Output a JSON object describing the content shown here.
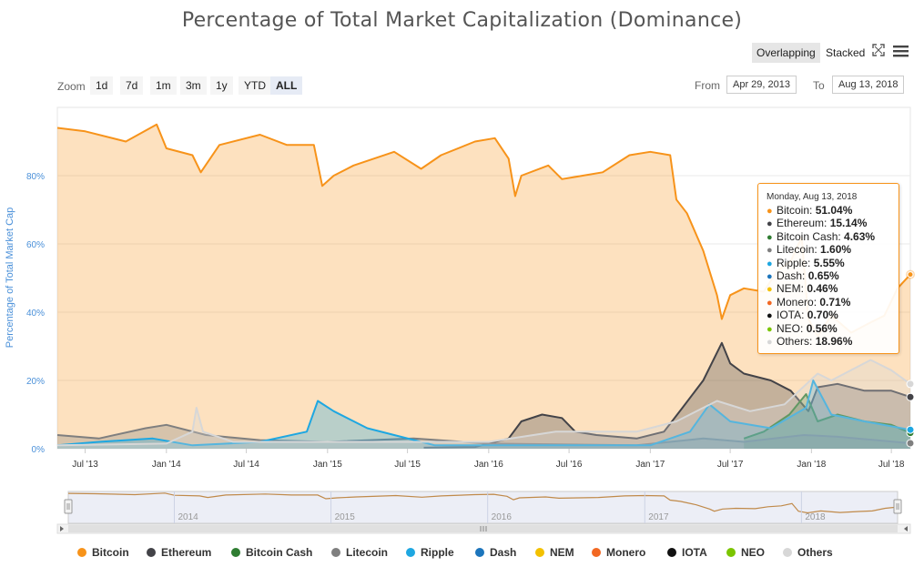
{
  "title": "Percentage of Total Market Capitalization (Dominance)",
  "toggle": {
    "overlapping": "Overlapping",
    "stacked": "Stacked"
  },
  "icons": {
    "fullscreen": "fullscreen-icon",
    "menu": "hamburger-menu-icon"
  },
  "zoom": {
    "label": "Zoom",
    "buttons": [
      "1d",
      "7d",
      "1m",
      "3m",
      "1y",
      "YTD",
      "ALL"
    ],
    "active": "ALL"
  },
  "range": {
    "from_label": "From",
    "from_value": "Apr 29, 2013",
    "to_label": "To",
    "to_value": "Aug 13, 2018"
  },
  "tooltip": {
    "date": "Monday, Aug 13, 2018",
    "rows": [
      {
        "name": "Bitcoin",
        "value": "51.04%"
      },
      {
        "name": "Ethereum",
        "value": "15.14%"
      },
      {
        "name": "Bitcoin Cash",
        "value": "4.63%"
      },
      {
        "name": "Litecoin",
        "value": "1.60%"
      },
      {
        "name": "Ripple",
        "value": "5.55%"
      },
      {
        "name": "Dash",
        "value": "0.65%"
      },
      {
        "name": "NEM",
        "value": "0.46%"
      },
      {
        "name": "Monero",
        "value": "0.71%"
      },
      {
        "name": "IOTA",
        "value": "0.70%"
      },
      {
        "name": "NEO",
        "value": "0.56%"
      },
      {
        "name": "Others",
        "value": "18.96%"
      }
    ]
  },
  "navigator": {
    "years": [
      "2014",
      "2015",
      "2016",
      "2017",
      "2018"
    ]
  },
  "chart_data": {
    "type": "area",
    "title": "Percentage of Total Market Capitalization (Dominance)",
    "ylabel": "Percentage of Total Market Cap",
    "xlabel": "",
    "y_ticks": [
      "0%",
      "20%",
      "40%",
      "60%",
      "80%"
    ],
    "x_ticks": [
      "Jul '13",
      "Jan '14",
      "Jul '14",
      "Jan '15",
      "Jul '15",
      "Jan '16",
      "Jul '16",
      "Jan '17",
      "Jul '17",
      "Jan '18",
      "Jul '18"
    ],
    "x_range": [
      "2013-04-29",
      "2018-08-13"
    ],
    "ylim": [
      0,
      100
    ],
    "grid": true,
    "legend_position": "bottom",
    "series": [
      {
        "name": "Bitcoin",
        "color": "#f7931a",
        "points": [
          [
            "2013-04-29",
            94
          ],
          [
            "2013-07-01",
            93
          ],
          [
            "2013-10-01",
            90
          ],
          [
            "2013-12-10",
            95
          ],
          [
            "2014-01-01",
            88
          ],
          [
            "2014-03-01",
            86
          ],
          [
            "2014-03-20",
            81
          ],
          [
            "2014-05-01",
            89
          ],
          [
            "2014-08-01",
            92
          ],
          [
            "2014-10-01",
            89
          ],
          [
            "2014-12-01",
            89
          ],
          [
            "2014-12-20",
            77
          ],
          [
            "2015-01-15",
            80
          ],
          [
            "2015-03-01",
            83
          ],
          [
            "2015-06-01",
            87
          ],
          [
            "2015-08-01",
            82
          ],
          [
            "2015-09-15",
            86
          ],
          [
            "2015-12-01",
            90
          ],
          [
            "2016-01-15",
            91
          ],
          [
            "2016-02-15",
            85
          ],
          [
            "2016-03-01",
            74
          ],
          [
            "2016-03-15",
            80
          ],
          [
            "2016-05-15",
            83
          ],
          [
            "2016-06-15",
            79
          ],
          [
            "2016-08-01",
            80
          ],
          [
            "2016-09-15",
            81
          ],
          [
            "2016-11-15",
            86
          ],
          [
            "2017-01-01",
            87
          ],
          [
            "2017-02-15",
            86
          ],
          [
            "2017-03-01",
            73
          ],
          [
            "2017-03-25",
            69
          ],
          [
            "2017-05-01",
            58
          ],
          [
            "2017-06-01",
            45
          ],
          [
            "2017-06-12",
            38
          ],
          [
            "2017-07-01",
            45
          ],
          [
            "2017-08-01",
            47
          ],
          [
            "2017-09-15",
            46
          ],
          [
            "2017-10-15",
            52
          ],
          [
            "2017-11-15",
            55
          ],
          [
            "2017-12-10",
            62
          ],
          [
            "2017-12-25",
            38
          ],
          [
            "2018-01-15",
            33
          ],
          [
            "2018-02-15",
            39
          ],
          [
            "2018-04-01",
            34
          ],
          [
            "2018-05-15",
            37
          ],
          [
            "2018-06-15",
            39
          ],
          [
            "2018-07-15",
            47
          ],
          [
            "2018-08-13",
            51.04
          ]
        ]
      },
      {
        "name": "Ethereum",
        "color": "#434348",
        "points": [
          [
            "2015-08-07",
            0.3
          ],
          [
            "2015-12-01",
            0.5
          ],
          [
            "2016-02-15",
            3
          ],
          [
            "2016-03-15",
            8
          ],
          [
            "2016-05-01",
            10
          ],
          [
            "2016-06-15",
            9
          ],
          [
            "2016-07-15",
            5
          ],
          [
            "2016-09-01",
            4
          ],
          [
            "2016-12-01",
            3
          ],
          [
            "2017-02-01",
            5
          ],
          [
            "2017-03-15",
            12
          ],
          [
            "2017-05-01",
            20
          ],
          [
            "2017-06-12",
            31
          ],
          [
            "2017-07-01",
            25
          ],
          [
            "2017-08-01",
            22
          ],
          [
            "2017-10-01",
            20
          ],
          [
            "2017-11-15",
            17
          ],
          [
            "2017-12-25",
            11
          ],
          [
            "2018-01-15",
            18
          ],
          [
            "2018-03-01",
            19
          ],
          [
            "2018-05-01",
            17
          ],
          [
            "2018-07-01",
            17
          ],
          [
            "2018-08-13",
            15.14
          ]
        ]
      },
      {
        "name": "Bitcoin Cash",
        "color": "#2f7d32",
        "points": [
          [
            "2017-08-01",
            3
          ],
          [
            "2017-09-15",
            5
          ],
          [
            "2017-11-12",
            10
          ],
          [
            "2017-12-20",
            16
          ],
          [
            "2018-01-15",
            8
          ],
          [
            "2018-03-01",
            10
          ],
          [
            "2018-05-01",
            8
          ],
          [
            "2018-07-01",
            7
          ],
          [
            "2018-08-13",
            4.63
          ]
        ]
      },
      {
        "name": "Litecoin",
        "color": "#7f7f7f",
        "points": [
          [
            "2013-04-29",
            4
          ],
          [
            "2013-08-01",
            3
          ],
          [
            "2013-11-15",
            6
          ],
          [
            "2014-01-01",
            7
          ],
          [
            "2014-04-01",
            4
          ],
          [
            "2014-08-01",
            2.5
          ],
          [
            "2015-01-01",
            2
          ],
          [
            "2015-07-15",
            3
          ],
          [
            "2016-01-01",
            1.5
          ],
          [
            "2016-12-01",
            1
          ],
          [
            "2017-05-01",
            3
          ],
          [
            "2017-08-01",
            2
          ],
          [
            "2017-12-15",
            4
          ],
          [
            "2018-03-01",
            3.5
          ],
          [
            "2018-08-13",
            1.6
          ]
        ]
      },
      {
        "name": "Ripple",
        "color": "#1ea7e1",
        "points": [
          [
            "2013-04-29",
            1
          ],
          [
            "2013-08-01",
            2
          ],
          [
            "2013-12-01",
            3
          ],
          [
            "2014-03-01",
            1
          ],
          [
            "2014-08-01",
            2
          ],
          [
            "2014-11-15",
            5
          ],
          [
            "2014-12-10",
            14
          ],
          [
            "2015-01-15",
            11
          ],
          [
            "2015-04-01",
            6
          ],
          [
            "2015-06-01",
            4
          ],
          [
            "2015-09-01",
            1
          ],
          [
            "2016-01-01",
            1
          ],
          [
            "2016-06-01",
            1
          ],
          [
            "2017-01-01",
            1
          ],
          [
            "2017-04-01",
            5
          ],
          [
            "2017-05-15",
            13
          ],
          [
            "2017-07-01",
            8
          ],
          [
            "2017-10-01",
            6
          ],
          [
            "2017-12-20",
            12
          ],
          [
            "2018-01-05",
            20
          ],
          [
            "2018-02-15",
            10
          ],
          [
            "2018-05-01",
            8
          ],
          [
            "2018-08-13",
            5.55
          ]
        ]
      },
      {
        "name": "Others",
        "color": "#d7d7d7",
        "points": [
          [
            "2013-04-29",
            1
          ],
          [
            "2014-01-01",
            1.5
          ],
          [
            "2014-03-01",
            5
          ],
          [
            "2014-03-10",
            12
          ],
          [
            "2014-03-25",
            5
          ],
          [
            "2014-06-01",
            2
          ],
          [
            "2015-01-01",
            2
          ],
          [
            "2016-01-01",
            2
          ],
          [
            "2016-06-01",
            5
          ],
          [
            "2016-12-01",
            5
          ],
          [
            "2017-03-01",
            8
          ],
          [
            "2017-06-01",
            14
          ],
          [
            "2017-08-15",
            11
          ],
          [
            "2017-11-01",
            13
          ],
          [
            "2018-01-15",
            22
          ],
          [
            "2018-02-15",
            20
          ],
          [
            "2018-05-15",
            26
          ],
          [
            "2018-07-01",
            23
          ],
          [
            "2018-08-13",
            18.96
          ]
        ]
      }
    ]
  },
  "legend": [
    {
      "name": "Bitcoin",
      "color": "#f7931a"
    },
    {
      "name": "Ethereum",
      "color": "#434348"
    },
    {
      "name": "Bitcoin Cash",
      "color": "#2f7d32"
    },
    {
      "name": "Litecoin",
      "color": "#7f7f7f"
    },
    {
      "name": "Ripple",
      "color": "#1ea7e1"
    },
    {
      "name": "Dash",
      "color": "#1c75bc"
    },
    {
      "name": "NEM",
      "color": "#f3c100"
    },
    {
      "name": "Monero",
      "color": "#f26822"
    },
    {
      "name": "IOTA",
      "color": "#111111"
    },
    {
      "name": "NEO",
      "color": "#7bc500"
    },
    {
      "name": "Others",
      "color": "#d7d7d7"
    }
  ]
}
